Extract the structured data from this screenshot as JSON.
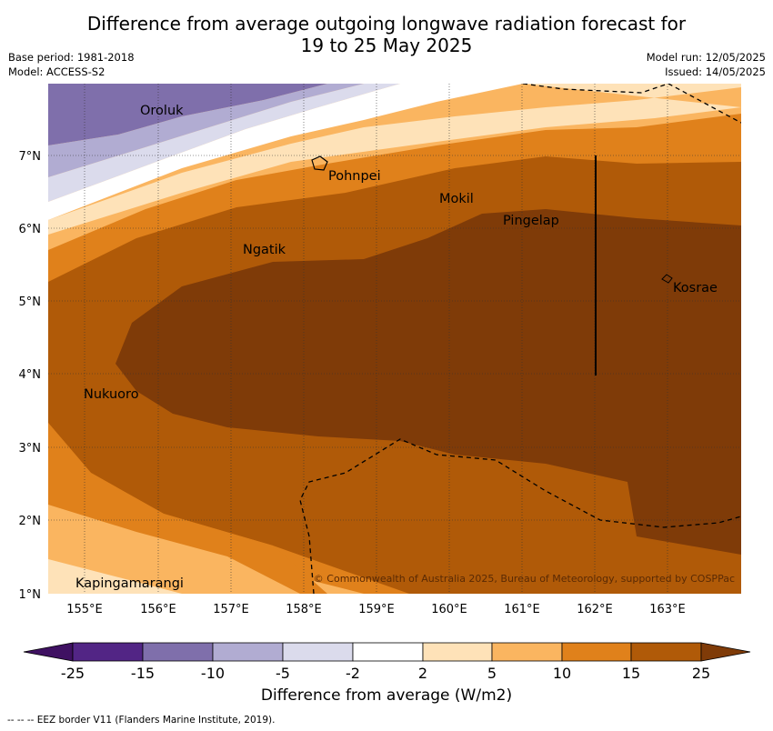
{
  "header": {
    "title_line1": "Difference from average outgoing longwave radiation forecast for",
    "title_line2": "19 to 25 May 2025",
    "base_period": "Base period: 1981-2018",
    "model": "Model: ACCESS-S2",
    "model_run": "Model run: 12/05/2025",
    "issued": "Issued: 14/05/2025"
  },
  "map": {
    "lon_ticks": [
      "155°E",
      "156°E",
      "157°E",
      "158°E",
      "159°E",
      "160°E",
      "161°E",
      "162°E",
      "163°E"
    ],
    "lat_ticks": [
      "7°N",
      "6°N",
      "5°N",
      "4°N",
      "3°N",
      "2°N",
      "1°N"
    ],
    "places": [
      "Oroluk",
      "Pohnpei",
      "Mokil",
      "Pingelap",
      "Ngatik",
      "Kosrae",
      "Nukuoro",
      "Kapingamarangi"
    ],
    "copyright": "© Commonwealth of Australia 2025, Bureau of Meteorology, supported by COSPPac"
  },
  "colorbar": {
    "ticks": [
      "-25",
      "-15",
      "-10",
      "-5",
      "-2",
      "2",
      "5",
      "10",
      "15",
      "25"
    ],
    "colors": [
      "#3f1162",
      "#522585",
      "#7f6fab",
      "#b1acd2",
      "#dbdbec",
      "#ffffff",
      "#fee2b8",
      "#fab560",
      "#e0811b",
      "#b05a08",
      "#7f3b08"
    ],
    "label": "Difference from average (W/m2)"
  },
  "footer": {
    "eez_note": "--  --  -- EEZ border V11 (Flanders Marine Institute, 2019)."
  }
}
